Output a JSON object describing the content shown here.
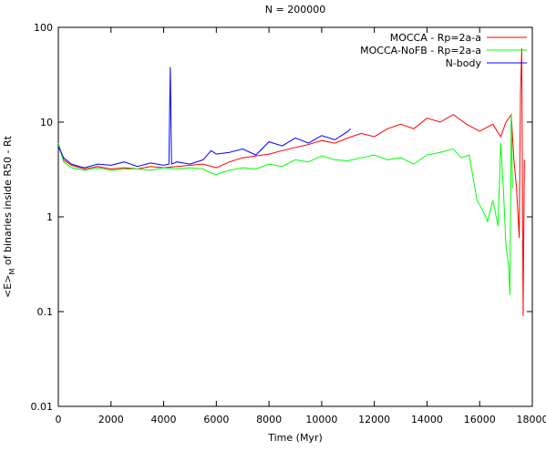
{
  "chart_data": {
    "type": "line",
    "title": "N = 200000",
    "x_label": "Time (Myr)",
    "y_label": [
      "<E>",
      "M",
      " of binaries inside R50 - Rt"
    ],
    "log_y": true,
    "legend": "top-right",
    "xlim": [
      0,
      18000
    ],
    "xticks": [
      0,
      2000,
      4000,
      6000,
      8000,
      10000,
      12000,
      14000,
      16000,
      18000
    ],
    "ylim": [
      0.01,
      100
    ],
    "yticks": [
      0.01,
      0.1,
      1,
      10,
      100
    ],
    "series": [
      {
        "name": "MOCCA - Rp=2a-a",
        "color": "#ff0000",
        "x": [
          0,
          200,
          500,
          1000,
          1500,
          2000,
          2500,
          3000,
          3500,
          4000,
          4500,
          5000,
          5500,
          6000,
          6500,
          7000,
          7500,
          8000,
          8500,
          9000,
          9500,
          10000,
          10500,
          11000,
          11500,
          12000,
          12500,
          13000,
          13500,
          14000,
          14500,
          15000,
          15500,
          16000,
          16500,
          16800,
          17000,
          17200,
          17300,
          17400,
          17500,
          17550,
          17600,
          17650,
          17700
        ],
        "values": [
          6,
          4,
          3.5,
          3.2,
          3.4,
          3.2,
          3.3,
          3.2,
          3.4,
          3.3,
          3.4,
          3.5,
          3.6,
          3.3,
          3.8,
          4.2,
          4.4,
          4.6,
          5.0,
          5.4,
          5.8,
          6.4,
          6.0,
          6.8,
          7.6,
          7.0,
          8.5,
          9.5,
          8.5,
          11,
          10,
          12,
          9.5,
          8,
          9.5,
          7,
          10,
          12,
          4,
          2,
          0.6,
          20,
          60,
          0.09,
          4
        ]
      },
      {
        "name": "MOCCA-NoFB - Rp=2a-a",
        "color": "#00ff00",
        "x": [
          0,
          200,
          500,
          1000,
          1500,
          2000,
          2500,
          3000,
          3500,
          4000,
          4500,
          5000,
          5500,
          5800,
          6000,
          6500,
          7000,
          7500,
          8000,
          8500,
          9000,
          9500,
          10000,
          10500,
          11000,
          11500,
          12000,
          12500,
          13000,
          13500,
          14000,
          14500,
          15000,
          15300,
          15600,
          15900,
          16100,
          16300,
          16500,
          16700,
          16800,
          16900,
          17000,
          17100,
          17150,
          17200,
          17250
        ],
        "values": [
          6,
          3.8,
          3.3,
          3.1,
          3.3,
          3.1,
          3.2,
          3.2,
          3.1,
          3.3,
          3.2,
          3.3,
          3.2,
          2.9,
          2.8,
          3.1,
          3.3,
          3.2,
          3.6,
          3.4,
          4.0,
          3.8,
          4.4,
          4.0,
          3.9,
          4.2,
          4.5,
          4.0,
          4.2,
          3.6,
          4.5,
          4.8,
          5.2,
          4.2,
          4.5,
          1.5,
          1.2,
          0.9,
          1.5,
          0.8,
          6,
          2,
          0.5,
          0.3,
          0.15,
          12,
          2
        ]
      },
      {
        "name": "N-body",
        "color": "#0000ff",
        "x": [
          0,
          200,
          500,
          800,
          1000,
          1500,
          2000,
          2500,
          3000,
          3500,
          4000,
          4200,
          4250,
          4300,
          4500,
          5000,
          5500,
          5800,
          6000,
          6500,
          7000,
          7500,
          8000,
          8500,
          9000,
          9500,
          10000,
          10500,
          11000,
          11100
        ],
        "values": [
          5.5,
          4.2,
          3.6,
          3.4,
          3.3,
          3.6,
          3.5,
          3.8,
          3.4,
          3.7,
          3.5,
          3.6,
          38,
          3.6,
          3.8,
          3.6,
          4.0,
          5.0,
          4.6,
          4.8,
          5.2,
          4.5,
          6.2,
          5.6,
          6.8,
          6.0,
          7.2,
          6.5,
          8.0,
          8.5
        ]
      }
    ]
  }
}
